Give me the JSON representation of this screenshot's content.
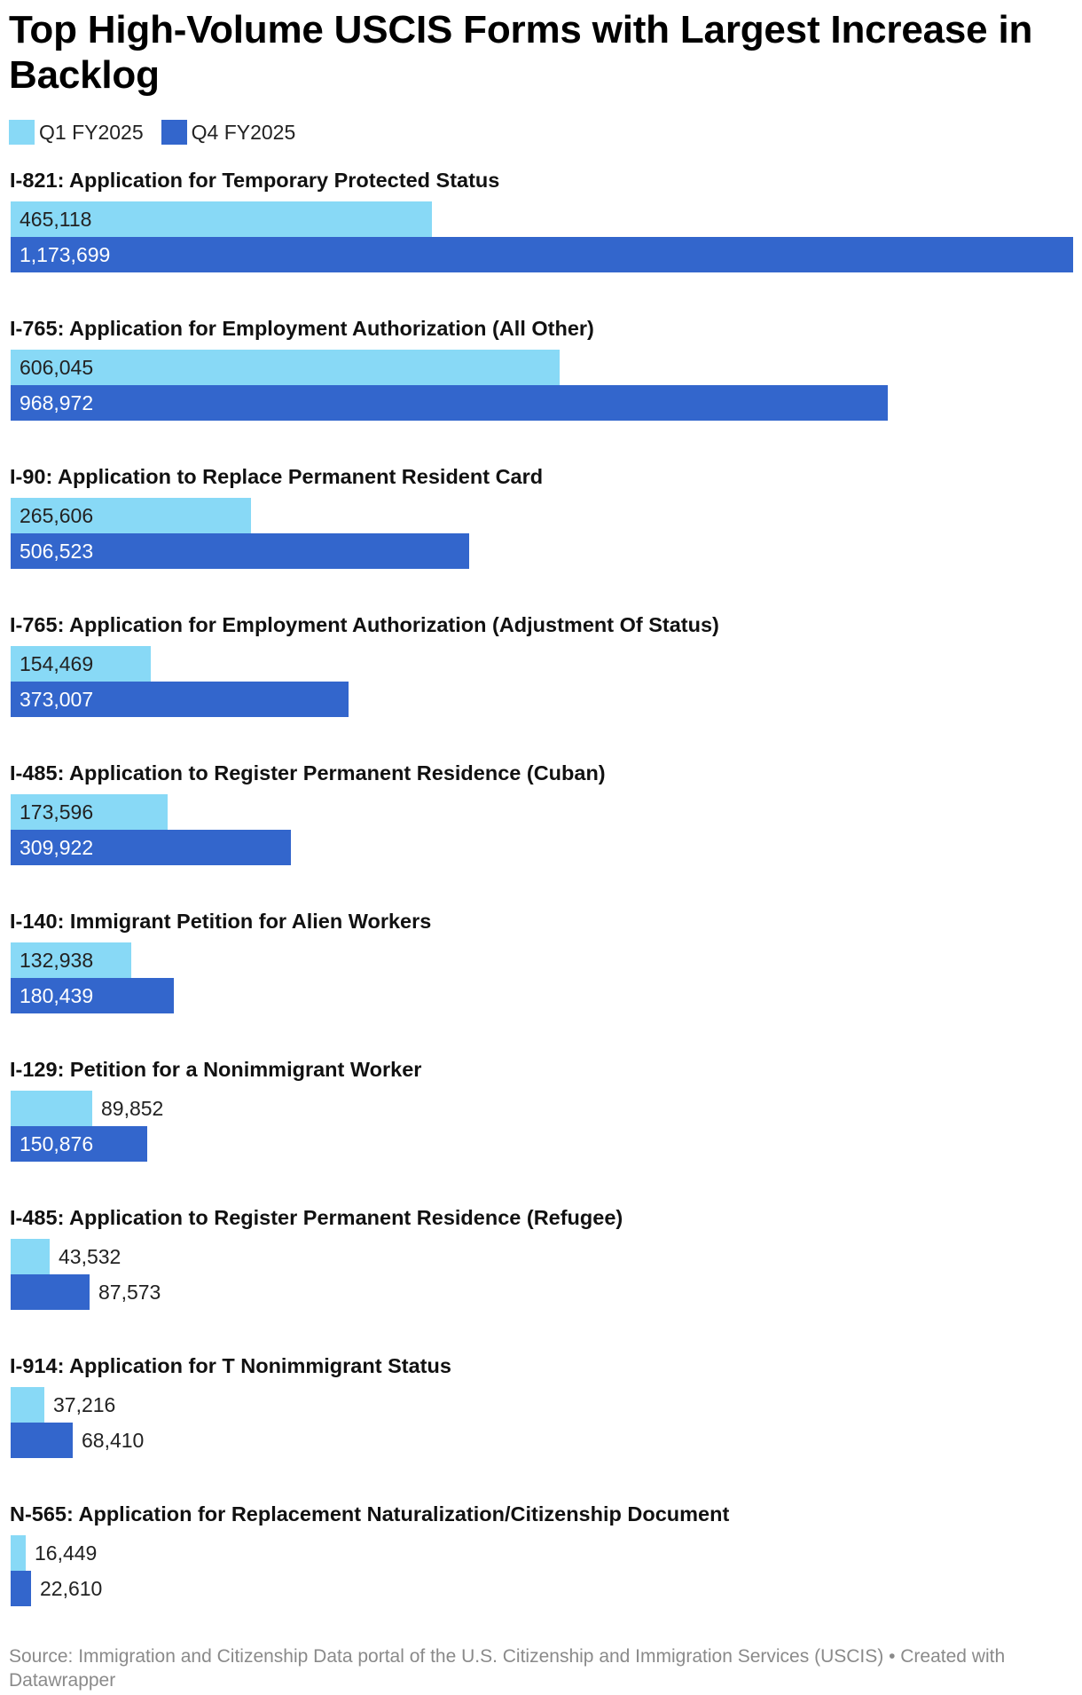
{
  "chart_data": {
    "type": "bar",
    "orientation": "horizontal",
    "title": "Top High-Volume USCIS Forms with Largest Increase in Backlog",
    "legend_position": "top-left",
    "grid": false,
    "xlim": [
      0,
      1173699
    ],
    "categories": [
      "I-821: Application for Temporary Protected Status",
      "I-765: Application for Employment Authorization (All Other)",
      "I-90: Application to Replace Permanent Resident Card",
      "I-765: Application for Employment Authorization (Adjustment Of Status)",
      "I-485: Application to Register Permanent Residence (Cuban)",
      "I-140: Immigrant Petition for Alien Workers",
      "I-129: Petition for a Nonimmigrant Worker",
      "I-485: Application to Register Permanent Residence (Refugee)",
      "I-914: Application for T Nonimmigrant Status",
      "N-565: Application for Replacement Naturalization/Citizenship Document"
    ],
    "series": [
      {
        "name": "Q1 FY2025",
        "color": "#88d9f6",
        "values": [
          465118,
          606045,
          265606,
          154469,
          173596,
          132938,
          89852,
          43532,
          37216,
          16449
        ],
        "labels": [
          "465,118",
          "606,045",
          "265,606",
          "154,469",
          "173,596",
          "132,938",
          "89,852",
          "43,532",
          "37,216",
          "16,449"
        ]
      },
      {
        "name": "Q4 FY2025",
        "color": "#3366cc",
        "values": [
          1173699,
          968972,
          506523,
          373007,
          309922,
          180439,
          150876,
          87573,
          68410,
          22610
        ],
        "labels": [
          "1,173,699",
          "968,972",
          "506,523",
          "373,007",
          "309,922",
          "180,439",
          "150,876",
          "87,573",
          "68,410",
          "22,610"
        ]
      }
    ]
  },
  "footer": {
    "text": "Source: Immigration and Citizenship Data portal of the U.S. Citizenship and Immigration Services (USCIS) • Created with Datawrapper"
  }
}
